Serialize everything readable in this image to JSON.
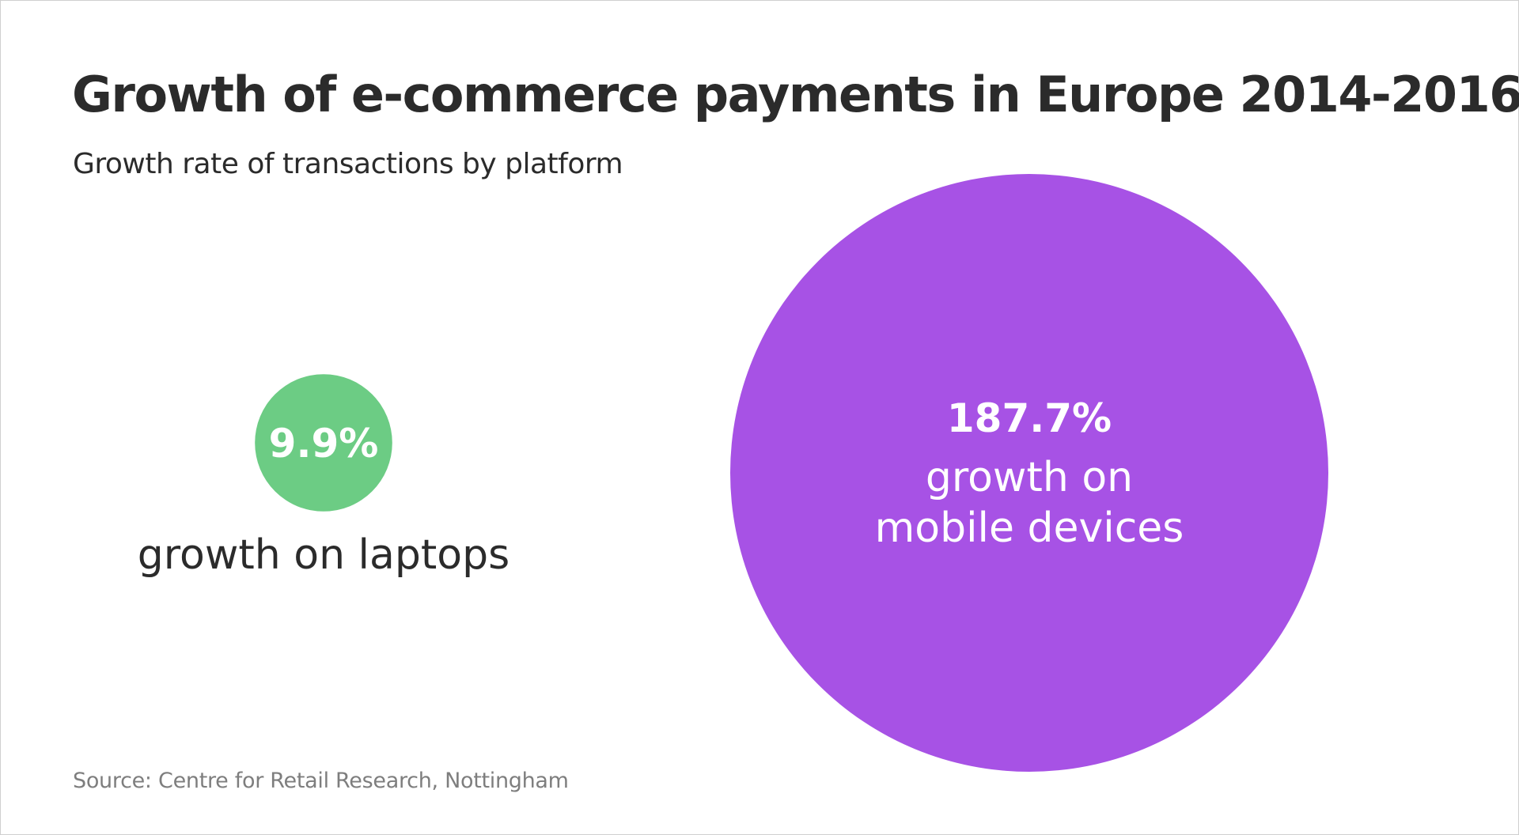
{
  "title": "Growth of e-commerce payments in Europe 2014-2016",
  "subtitle": "Growth rate of transactions by platform",
  "source": "Source: Centre for Retail Research, Nottingham",
  "colors": {
    "laptops": "#6ccc84",
    "mobile": "#a752e5",
    "text": "#2b2b2b",
    "source": "#7e7e7e"
  },
  "chart_data": {
    "type": "bubble",
    "title": "Growth of e-commerce payments in Europe 2014-2016",
    "subtitle": "Growth rate of transactions by platform",
    "unit": "%",
    "items": [
      {
        "value": 9.9,
        "value_label": "9.9%",
        "caption": "growth on laptops",
        "color": "#6ccc84"
      },
      {
        "value": 187.7,
        "value_label": "187.7%",
        "caption_lines": [
          "growth on",
          "mobile devices"
        ],
        "color": "#a752e5"
      }
    ]
  }
}
